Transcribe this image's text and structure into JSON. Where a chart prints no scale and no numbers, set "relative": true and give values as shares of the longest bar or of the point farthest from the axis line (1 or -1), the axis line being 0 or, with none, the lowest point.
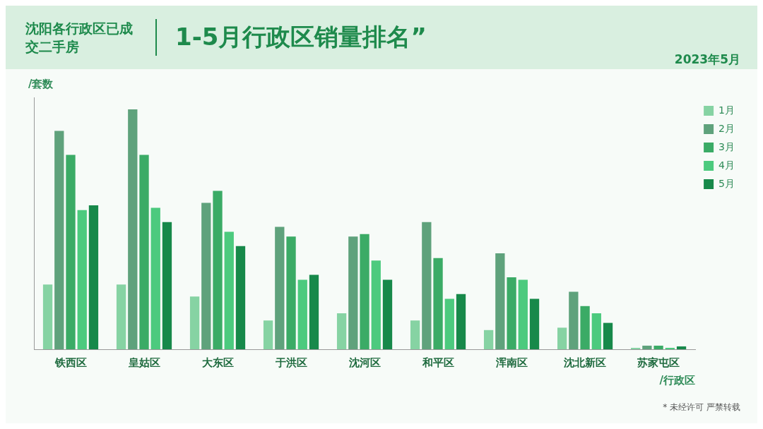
{
  "chart_data": {
    "type": "bar",
    "title": "沈阳各行政区已成交二手房",
    "subtitle": "1-5月行政区销量排名”",
    "xlabel": "/行政区",
    "ylabel": "/套数",
    "annotations": [
      "2023年5月",
      "* 未经许可 严禁转载"
    ],
    "relative": true,
    "legend": "top right",
    "categories": [
      "铁西区",
      "皇姑区",
      "大东区",
      "于洪区",
      "沈河区",
      "和平区",
      "浑南区",
      "沈北新区",
      "苏家屯区"
    ],
    "series": [
      {
        "name": "1月",
        "color": "#86d3a3",
        "values": [
          0.27,
          0.27,
          0.22,
          0.12,
          0.15,
          0.12,
          0.08,
          0.09,
          0.006
        ]
      },
      {
        "name": "2月",
        "color": "#5fa27c",
        "values": [
          0.91,
          1,
          0.61,
          0.51,
          0.47,
          0.53,
          0.4,
          0.24,
          0.015
        ]
      },
      {
        "name": "3月",
        "color": "#3bab66",
        "values": [
          0.81,
          0.81,
          0.66,
          0.47,
          0.48,
          0.38,
          0.3,
          0.18,
          0.015
        ]
      },
      {
        "name": "4月",
        "color": "#4cca7e",
        "values": [
          0.58,
          0.59,
          0.49,
          0.29,
          0.37,
          0.21,
          0.29,
          0.15,
          0.006
        ]
      },
      {
        "name": "5月",
        "color": "#17894a",
        "values": [
          0.6,
          0.53,
          0.43,
          0.31,
          0.29,
          0.23,
          0.21,
          0.11,
          0.012
        ]
      }
    ]
  }
}
